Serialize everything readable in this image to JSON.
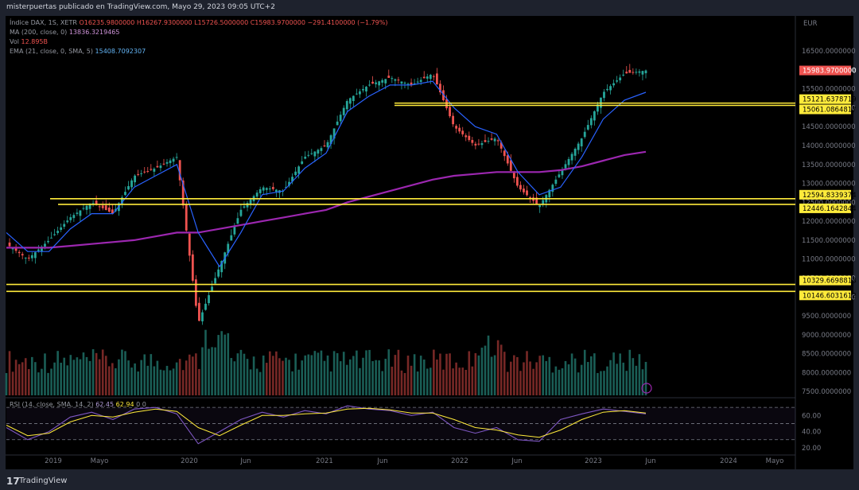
{
  "header": {
    "publisher": "misterpuertas publicado en TradingView.com, Mayo 29, 2023 09:05 UTC+2"
  },
  "legend": {
    "symbol": "Índice DAX, 1S, XETR",
    "ohlc": "O16235.9800000 H16267.9300000 L15726.5000000 C15983.9700000 −291.4100000 (−1.79%)",
    "ma_label": "MA (200, close, 0)",
    "ma_value": "13836.3219465",
    "vol_label": "Vol",
    "vol_value": "12.895B",
    "ema_label": "EMA (21, close, 0, SMA, 5)",
    "ema_value": "15408.7092307"
  },
  "rsi_legend": {
    "label": "RSI (14, close, SMA, 14, 2)",
    "v1": "62.45",
    "v2": "62.94",
    "extra": "0  0"
  },
  "price_axis": {
    "currency": "EUR",
    "ticks": [
      "16500.0000000",
      "16000.0000000",
      "15500.0000000",
      "15000.0000000",
      "14500.0000000",
      "14000.0000000",
      "13500.0000000",
      "13000.0000000",
      "12500.0000000",
      "12000.0000000",
      "11500.0000000",
      "11000.0000000",
      "10500.0000000",
      "10000.0000000",
      "9500.0000000",
      "9000.0000000",
      "8500.0000000",
      "8000.0000000",
      "7500.0000000"
    ],
    "last_price": "15983.9700000",
    "levels": [
      "15121.6378719",
      "15061.0864817",
      "12594.8339374",
      "12446.1642844",
      "10329.6698813",
      "10146.6031612"
    ]
  },
  "rsi_axis": {
    "ticks": [
      "60.00",
      "40.00",
      "20.00"
    ]
  },
  "time_axis": {
    "labels": [
      "2019",
      "Mayo",
      "2020",
      "Jun",
      "2021",
      "Jun",
      "2022",
      "Jun",
      "2023",
      "Jun",
      "2024",
      "Mayo"
    ]
  },
  "footer": {
    "logo": "17",
    "brand": "TradingView"
  },
  "chart_data": {
    "type": "line",
    "title": "Índice DAX, 1S, XETR",
    "ylim": [
      7400,
      16900
    ],
    "x": [
      "2018-11",
      "2019-01",
      "2019-03",
      "2019-05",
      "2019-07",
      "2019-09",
      "2019-11",
      "2020-01",
      "2020-02",
      "2020-03",
      "2020-04",
      "2020-06",
      "2020-08",
      "2020-10",
      "2020-12",
      "2021-02",
      "2021-04",
      "2021-06",
      "2021-08",
      "2021-10",
      "2021-12",
      "2022-02",
      "2022-03",
      "2022-05",
      "2022-07",
      "2022-09",
      "2022-10",
      "2022-12",
      "2023-02",
      "2023-04",
      "2023-05"
    ],
    "series": [
      {
        "values": [
          11400,
          11000,
          11500,
          12100,
          12500,
          12200,
          13200,
          13400,
          13700,
          9300,
          10800,
          12300,
          12900,
          12800,
          13700,
          14000,
          15200,
          15600,
          15800,
          15600,
          15900,
          14500,
          14000,
          14200,
          12900,
          12400,
          13300,
          14200,
          15400,
          15900,
          15984
        ]
      },
      {
        "name": "EMA (21, close, 0, SMA, 5)",
        "values": [
          11700,
          11200,
          11200,
          11800,
          12200,
          12200,
          12900,
          13200,
          13500,
          11700,
          10800,
          11700,
          12700,
          12800,
          13400,
          13800,
          14900,
          15300,
          15600,
          15600,
          15700,
          15000,
          14500,
          14300,
          13300,
          12700,
          12900,
          13700,
          14700,
          15200,
          15408
        ]
      },
      {
        "name": "MA (200, close, 0)",
        "values": [
          11300,
          11300,
          11300,
          11350,
          11400,
          11450,
          11500,
          11600,
          11700,
          11700,
          11800,
          11900,
          12000,
          12100,
          12200,
          12300,
          12500,
          12650,
          12800,
          12950,
          13100,
          13200,
          13250,
          13300,
          13300,
          13300,
          13350,
          13450,
          13600,
          13750,
          13836
        ]
      }
    ],
    "levels": [
      15121.6378719,
      15061.0864817,
      12594.8339374,
      12446.1642844,
      10329.6698813,
      10146.6031612
    ],
    "rsi": {
      "ylim": [
        15,
        80
      ],
      "bands": [
        70,
        50,
        30
      ],
      "rsi_values": [
        45,
        30,
        40,
        58,
        64,
        55,
        68,
        70,
        62,
        25,
        40,
        55,
        64,
        58,
        66,
        62,
        72,
        68,
        66,
        60,
        64,
        45,
        38,
        45,
        30,
        28,
        55,
        62,
        68,
        65,
        62
      ],
      "sma_values": [
        48,
        35,
        38,
        52,
        60,
        58,
        64,
        68,
        65,
        45,
        35,
        48,
        60,
        60,
        62,
        63,
        68,
        69,
        67,
        63,
        63,
        55,
        45,
        42,
        36,
        33,
        42,
        55,
        64,
        66,
        63
      ]
    }
  }
}
